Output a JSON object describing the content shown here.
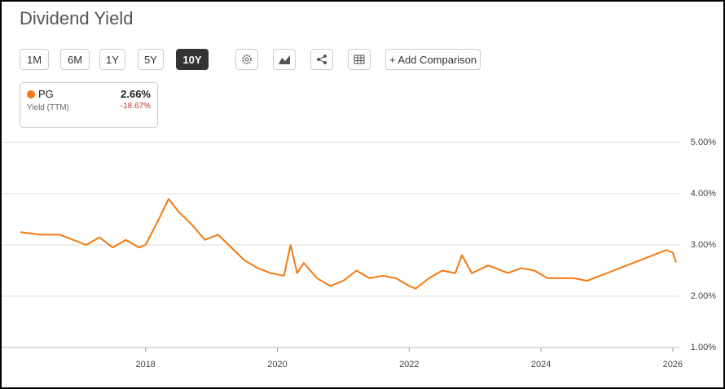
{
  "header": {
    "title": "Dividend Yield"
  },
  "toolbar": {
    "ranges": [
      "1M",
      "6M",
      "1Y",
      "5Y",
      "10Y"
    ],
    "active": "10Y",
    "compare": "+ Add Comparison"
  },
  "legend_card": {
    "value": "2.66%",
    "label": "Yield (TTM)",
    "change": "-18.67%"
  },
  "chart_data": {
    "type": "line",
    "x": [
      2016.1,
      2016.4,
      2016.7,
      2016.9,
      2017.1,
      2017.3,
      2017.5,
      2017.7,
      2017.9,
      2018.0,
      2018.2,
      2018.35,
      2018.5,
      2018.7,
      2018.9,
      2019.1,
      2019.3,
      2019.5,
      2019.7,
      2019.9,
      2020.1,
      2020.2,
      2020.3,
      2020.4,
      2020.6,
      2020.8,
      2021.0,
      2021.2,
      2021.4,
      2021.6,
      2021.8,
      2022.0,
      2022.1,
      2022.3,
      2022.5,
      2022.7,
      2022.8,
      2022.95,
      2023.2,
      2023.5,
      2023.7,
      2023.9,
      2024.1,
      2024.3,
      2024.5,
      2024.7,
      2024.9,
      2025.1,
      2025.3,
      2025.6,
      2025.9,
      2026.0,
      2026.05
    ],
    "series": [
      {
        "name": "PG",
        "color": "#f5790f",
        "values": [
          3.25,
          3.2,
          3.2,
          3.1,
          3.0,
          3.15,
          2.95,
          3.1,
          2.95,
          3.0,
          3.5,
          3.9,
          3.65,
          3.4,
          3.1,
          3.2,
          2.95,
          2.7,
          2.55,
          2.45,
          2.4,
          3.0,
          2.45,
          2.65,
          2.35,
          2.2,
          2.3,
          2.5,
          2.35,
          2.4,
          2.35,
          2.2,
          2.15,
          2.35,
          2.5,
          2.45,
          2.8,
          2.45,
          2.6,
          2.45,
          2.55,
          2.5,
          2.35,
          2.35,
          2.35,
          2.3,
          2.4,
          2.5,
          2.6,
          2.75,
          2.9,
          2.85,
          2.66
        ]
      }
    ],
    "xlim": [
      2016.1,
      2026.1
    ],
    "xticks": [
      2018,
      2020,
      2022,
      2024,
      2026
    ],
    "ylim": [
      1,
      5
    ],
    "yticks": [
      {
        "value": 1,
        "label": "1.00%"
      },
      {
        "value": 2,
        "label": "2.00%"
      },
      {
        "value": 3,
        "label": "3.00%"
      },
      {
        "value": 4,
        "label": "4.00%"
      },
      {
        "value": 5,
        "label": "5.00%"
      }
    ],
    "grid": true
  }
}
